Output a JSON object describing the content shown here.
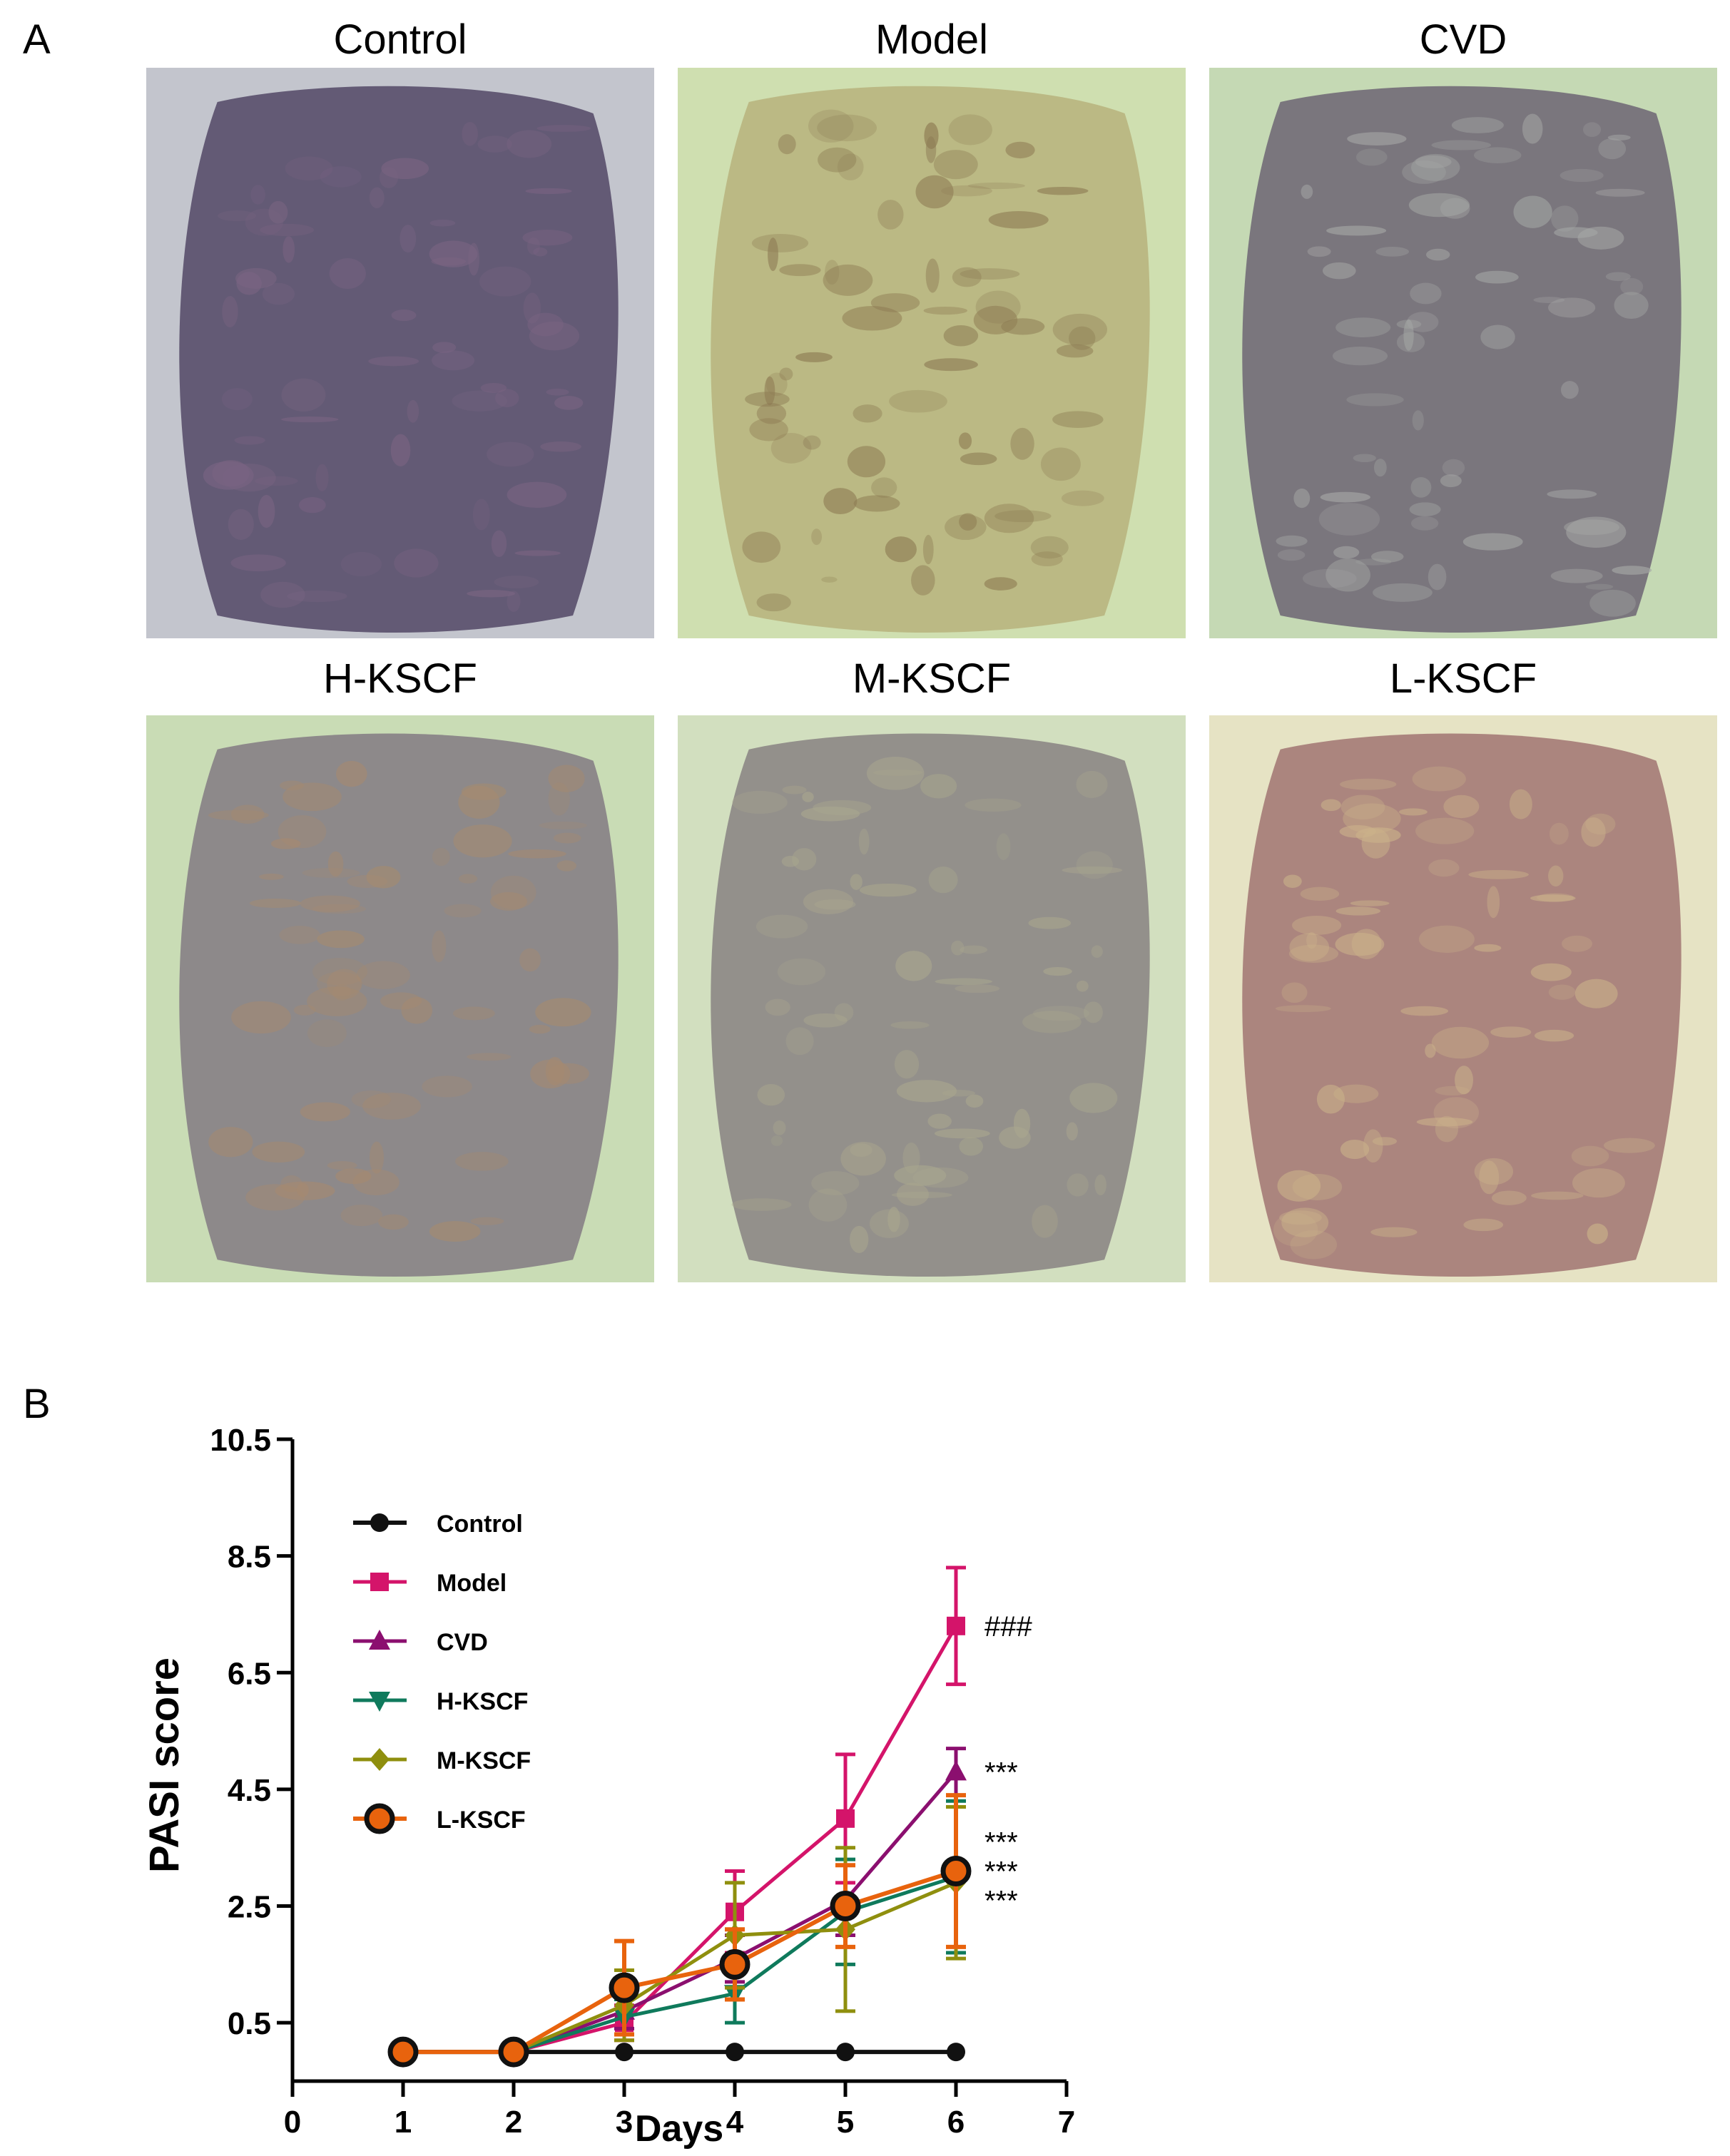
{
  "panel_a": {
    "letter": "A",
    "photos": [
      {
        "title": "Control",
        "colors": {
          "fur": "#c3c5cd",
          "skin": "#5e5470",
          "accent": "#7a6482"
        }
      },
      {
        "title": "Model",
        "colors": {
          "fur": "#cfdfb0",
          "skin": "#b9b682",
          "accent": "#8c7a52"
        }
      },
      {
        "title": "CVD",
        "colors": {
          "fur": "#c5d9b4",
          "skin": "#76717a",
          "accent": "#a6a8a6"
        }
      },
      {
        "title": "H-KSCF",
        "colors": {
          "fur": "#c9dcb5",
          "skin": "#8a8488",
          "accent": "#a58a70"
        }
      },
      {
        "title": "M-KSCF",
        "colors": {
          "fur": "#d2dfbf",
          "skin": "#8f8b88",
          "accent": "#a9a68e"
        }
      },
      {
        "title": "L-KSCF",
        "colors": {
          "fur": "#e6e3c4",
          "skin": "#a8807a",
          "accent": "#cbb28a"
        }
      }
    ]
  },
  "panel_b": {
    "letter": "B"
  },
  "chart_data": {
    "type": "line",
    "xlabel": "Days",
    "ylabel": "PASI  score",
    "xlim": [
      0,
      7
    ],
    "ylim": [
      -0.5,
      10.5
    ],
    "x_ticks": [
      0,
      1,
      2,
      3,
      4,
      5,
      6,
      7
    ],
    "y_ticks": [
      0.5,
      2.5,
      4.5,
      6.5,
      8.5,
      10.5
    ],
    "y_tick_labels": [
      "0.5",
      "2.5",
      "4.5",
      "6.5",
      "8.5",
      "10.5"
    ],
    "x": [
      1,
      2,
      3,
      4,
      5,
      6
    ],
    "legend_position": "upper-left",
    "series": [
      {
        "name": "Control",
        "color": "#111111",
        "marker": "circle",
        "values": [
          0,
          0,
          0,
          0,
          0,
          0
        ],
        "errors": [
          0,
          0,
          0,
          0,
          0,
          0
        ]
      },
      {
        "name": "Model",
        "color": "#d4146a",
        "marker": "square",
        "values": [
          0,
          0,
          0.5,
          2.4,
          4.0,
          7.3
        ],
        "errors": [
          0,
          0,
          0.3,
          0.7,
          1.1,
          1.0
        ]
      },
      {
        "name": "CVD",
        "color": "#8b0f6f",
        "marker": "triangle-up",
        "values": [
          0,
          0,
          0.7,
          1.6,
          2.6,
          4.8
        ],
        "errors": [
          0,
          0,
          0.3,
          0.4,
          0.6,
          0.4
        ]
      },
      {
        "name": "H-KSCF",
        "color": "#0f7a5c",
        "marker": "triangle-down",
        "values": [
          0,
          0,
          0.6,
          1.0,
          2.4,
          3.0
        ],
        "errors": [
          0,
          0,
          0.3,
          0.5,
          0.9,
          1.3
        ]
      },
      {
        "name": "M-KSCF",
        "color": "#8f8f0e",
        "marker": "diamond",
        "values": [
          0,
          0,
          0.8,
          2.0,
          2.1,
          2.9
        ],
        "errors": [
          0,
          0,
          0.6,
          0.9,
          1.4,
          1.3
        ]
      },
      {
        "name": "L-KSCF",
        "color": "#e8630d",
        "marker": "circle-large",
        "values": [
          0,
          0,
          1.1,
          1.5,
          2.5,
          3.1
        ],
        "errors": [
          0,
          0,
          0.8,
          0.6,
          0.7,
          1.3
        ]
      }
    ],
    "annotations": [
      {
        "text": "###",
        "series": "Model",
        "x": 6,
        "y": 7.3
      },
      {
        "text": "***",
        "series": "CVD",
        "x": 6,
        "y": 4.8
      },
      {
        "text": "***",
        "series": "H-KSCF",
        "x": 6,
        "y": 3.6
      },
      {
        "text": "***",
        "series": "L-KSCF",
        "x": 6,
        "y": 3.1
      },
      {
        "text": "***",
        "series": "M-KSCF",
        "x": 6,
        "y": 2.6
      }
    ]
  }
}
